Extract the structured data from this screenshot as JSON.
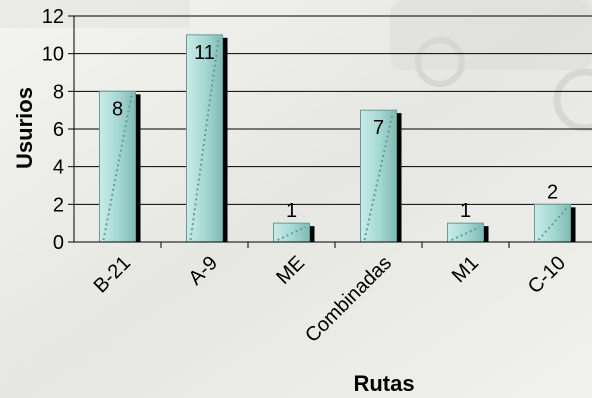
{
  "chart_data": {
    "type": "bar",
    "title": "",
    "xlabel": "Rutas",
    "ylabel": "Usurios",
    "categories": [
      "B-21",
      "A-9",
      "ME",
      "Combinadas",
      "M1",
      "C-10"
    ],
    "values": [
      8,
      11,
      1,
      7,
      1,
      2
    ],
    "data_labels": [
      "8",
      "11",
      "1",
      "7",
      "1",
      "2"
    ],
    "ylim": [
      0,
      12
    ],
    "yticks": [
      "0",
      "2",
      "4",
      "6",
      "8",
      "10",
      "12"
    ],
    "grid": true,
    "legend": "none",
    "colors": {
      "bar": "#a9ddd7",
      "bar_dark": "#5f9f98",
      "shadow": "#000000",
      "grid": "#000000",
      "background_tint": "#e9e9e4"
    }
  }
}
